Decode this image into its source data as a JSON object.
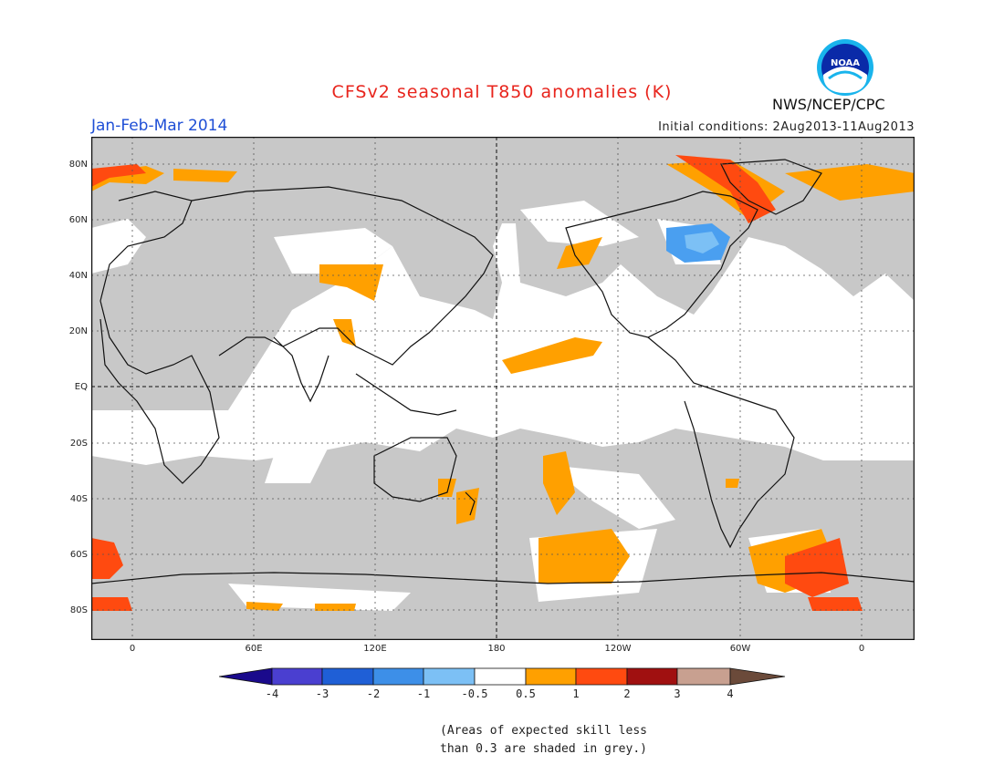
{
  "title": "CFSv2 seasonal T850 anomalies (K)",
  "season": "Jan-Feb-Mar 2014",
  "initial_conditions": "Initial conditions: 2Aug2013-11Aug2013",
  "agency": "NWS/NCEP/CPC",
  "logo_text": "NOAA",
  "lat_labels": [
    "80N",
    "60N",
    "40N",
    "20N",
    "EQ",
    "20S",
    "40S",
    "60S",
    "80S"
  ],
  "lon_labels": [
    "0",
    "60E",
    "120E",
    "180",
    "120W",
    "60W",
    "0"
  ],
  "colorbar": {
    "labels": [
      "-4",
      "-3",
      "-2",
      "-1",
      "-0.5",
      "0.5",
      "1",
      "2",
      "3",
      "4"
    ],
    "colors": [
      "#1a0a8c",
      "#4a3fd0",
      "#1f5fd6",
      "#3d8fe8",
      "#7cc0f5",
      "#ffffff",
      "#ffa000",
      "#ff4a10",
      "#a01010",
      "#c8a090",
      "#6b4a3a"
    ]
  },
  "note_line1": "(Areas of expected skill less",
  "note_line2": "than 0.3 are shaded in grey.)",
  "colors": {
    "grey_shade": "#c8c8c8",
    "orange": "#ffa000",
    "red": "#ff4a10",
    "blue": "#4a9ff0",
    "title": "#e8241c",
    "season": "#1f4fd6"
  }
}
